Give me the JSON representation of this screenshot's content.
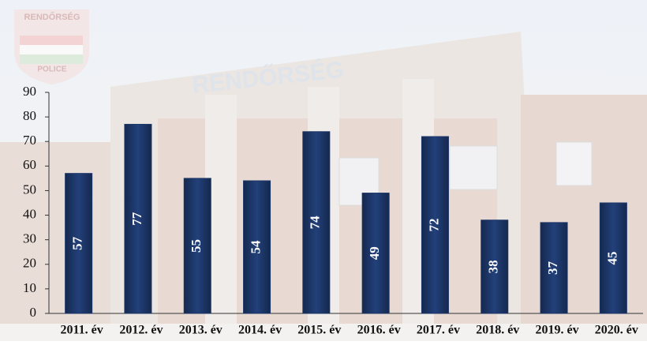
{
  "chart_data": {
    "type": "bar",
    "categories": [
      "2011. év",
      "2012. év",
      "2013. év",
      "2014. év",
      "2015. év",
      "2016. év",
      "2017. év",
      "2018. év",
      "2019. év",
      "2020. év"
    ],
    "values": [
      57,
      77,
      55,
      54,
      74,
      49,
      72,
      38,
      37,
      45
    ],
    "color": "#1c3566",
    "ylim": [
      0,
      90
    ],
    "yticks": [
      0,
      10,
      20,
      30,
      40,
      50,
      60,
      70,
      80,
      90
    ],
    "grid": false
  },
  "logo": {
    "top": "RENDŐRSÉG",
    "bottom": "POLICE"
  },
  "building_sign": "RENDŐRSÉG"
}
